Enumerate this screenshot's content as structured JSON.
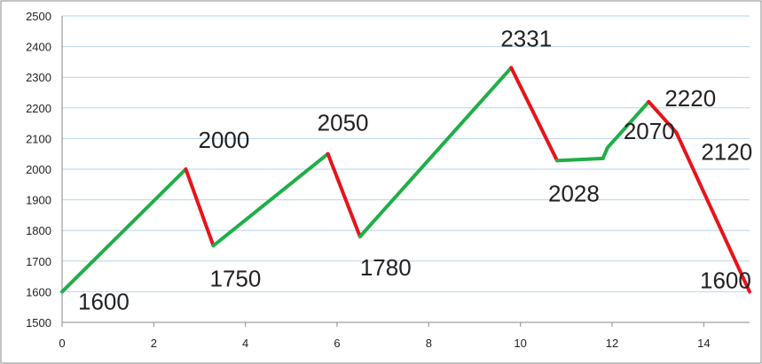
{
  "chart_data": {
    "type": "line",
    "title": "",
    "xlabel": "",
    "ylabel": "",
    "xlim": [
      0,
      15
    ],
    "ylim": [
      1500,
      2500
    ],
    "x_ticks": [
      0,
      2,
      4,
      6,
      8,
      10,
      12,
      14
    ],
    "y_ticks": [
      1500,
      1600,
      1700,
      1800,
      1900,
      2000,
      2100,
      2200,
      2300,
      2400,
      2500
    ],
    "grid": "horizontal",
    "colors": {
      "up": "#1fae47",
      "down": "#e8131b",
      "grid": "#b9d2ea",
      "frame": "#8a8a8a"
    },
    "points": [
      {
        "x": 0,
        "y": 1600,
        "label": "1600"
      },
      {
        "x": 2.7,
        "y": 2000,
        "label": "2000"
      },
      {
        "x": 3.3,
        "y": 1750,
        "label": "1750"
      },
      {
        "x": 5.8,
        "y": 2050,
        "label": "2050"
      },
      {
        "x": 6.5,
        "y": 1780,
        "label": "1780"
      },
      {
        "x": 9.8,
        "y": 2331,
        "label": "2331"
      },
      {
        "x": 10.8,
        "y": 2028,
        "label": "2028"
      },
      {
        "x": 11.8,
        "y": 2035,
        "label": ""
      },
      {
        "x": 11.9,
        "y": 2070,
        "label": "2070"
      },
      {
        "x": 12.8,
        "y": 2220,
        "label": "2220"
      },
      {
        "x": 13.4,
        "y": 2120,
        "label": "2120"
      },
      {
        "x": 15,
        "y": 1600,
        "label": "1600"
      }
    ]
  }
}
